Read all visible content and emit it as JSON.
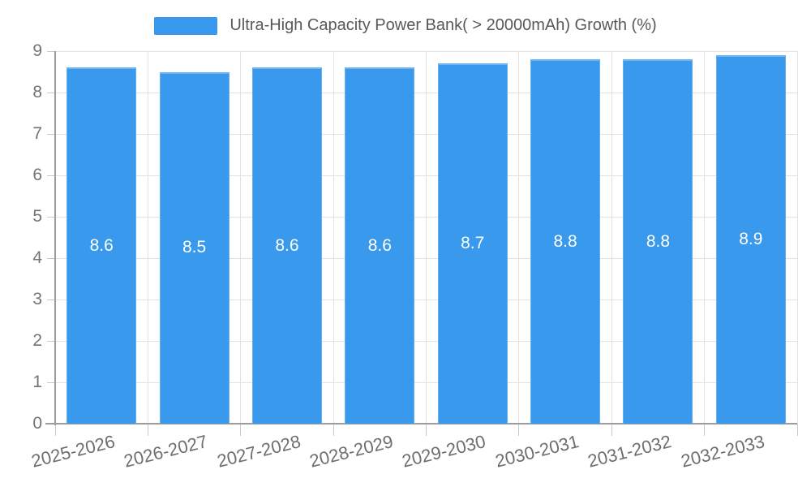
{
  "legend": {
    "series_label": "Ultra-High Capacity Power Bank( > 20000mAh) Growth (%)"
  },
  "chart_data": {
    "type": "bar",
    "title": "Ultra-High Capacity Power Bank( > 20000mAh) Growth (%)",
    "categories": [
      "2025-2026",
      "2026-2027",
      "2027-2028",
      "2028-2029",
      "2029-2030",
      "2030-2031",
      "2031-2032",
      "2032-2033"
    ],
    "values": [
      8.6,
      8.5,
      8.6,
      8.6,
      8.7,
      8.8,
      8.8,
      8.9
    ],
    "series": [
      {
        "name": "Ultra-High Capacity Power Bank( > 20000mAh) Growth (%)",
        "values": [
          8.6,
          8.5,
          8.6,
          8.6,
          8.7,
          8.8,
          8.8,
          8.9
        ]
      }
    ],
    "xlabel": "",
    "ylabel": "",
    "ylim": [
      0,
      9
    ],
    "ytick_step": 1,
    "grid": true,
    "legend_position": "top",
    "value_labels": "inside-center"
  },
  "colors": {
    "bar": "#3999ed",
    "grid_line": "#e2e2e2",
    "axis_line": "#9c9c9c",
    "tick": "#c9c9c9",
    "axis_text": "#737373",
    "x_axis_text": "#6e6e6e",
    "title_text": "#595959",
    "value_text": "#ffffff",
    "background": "#ffffff"
  }
}
